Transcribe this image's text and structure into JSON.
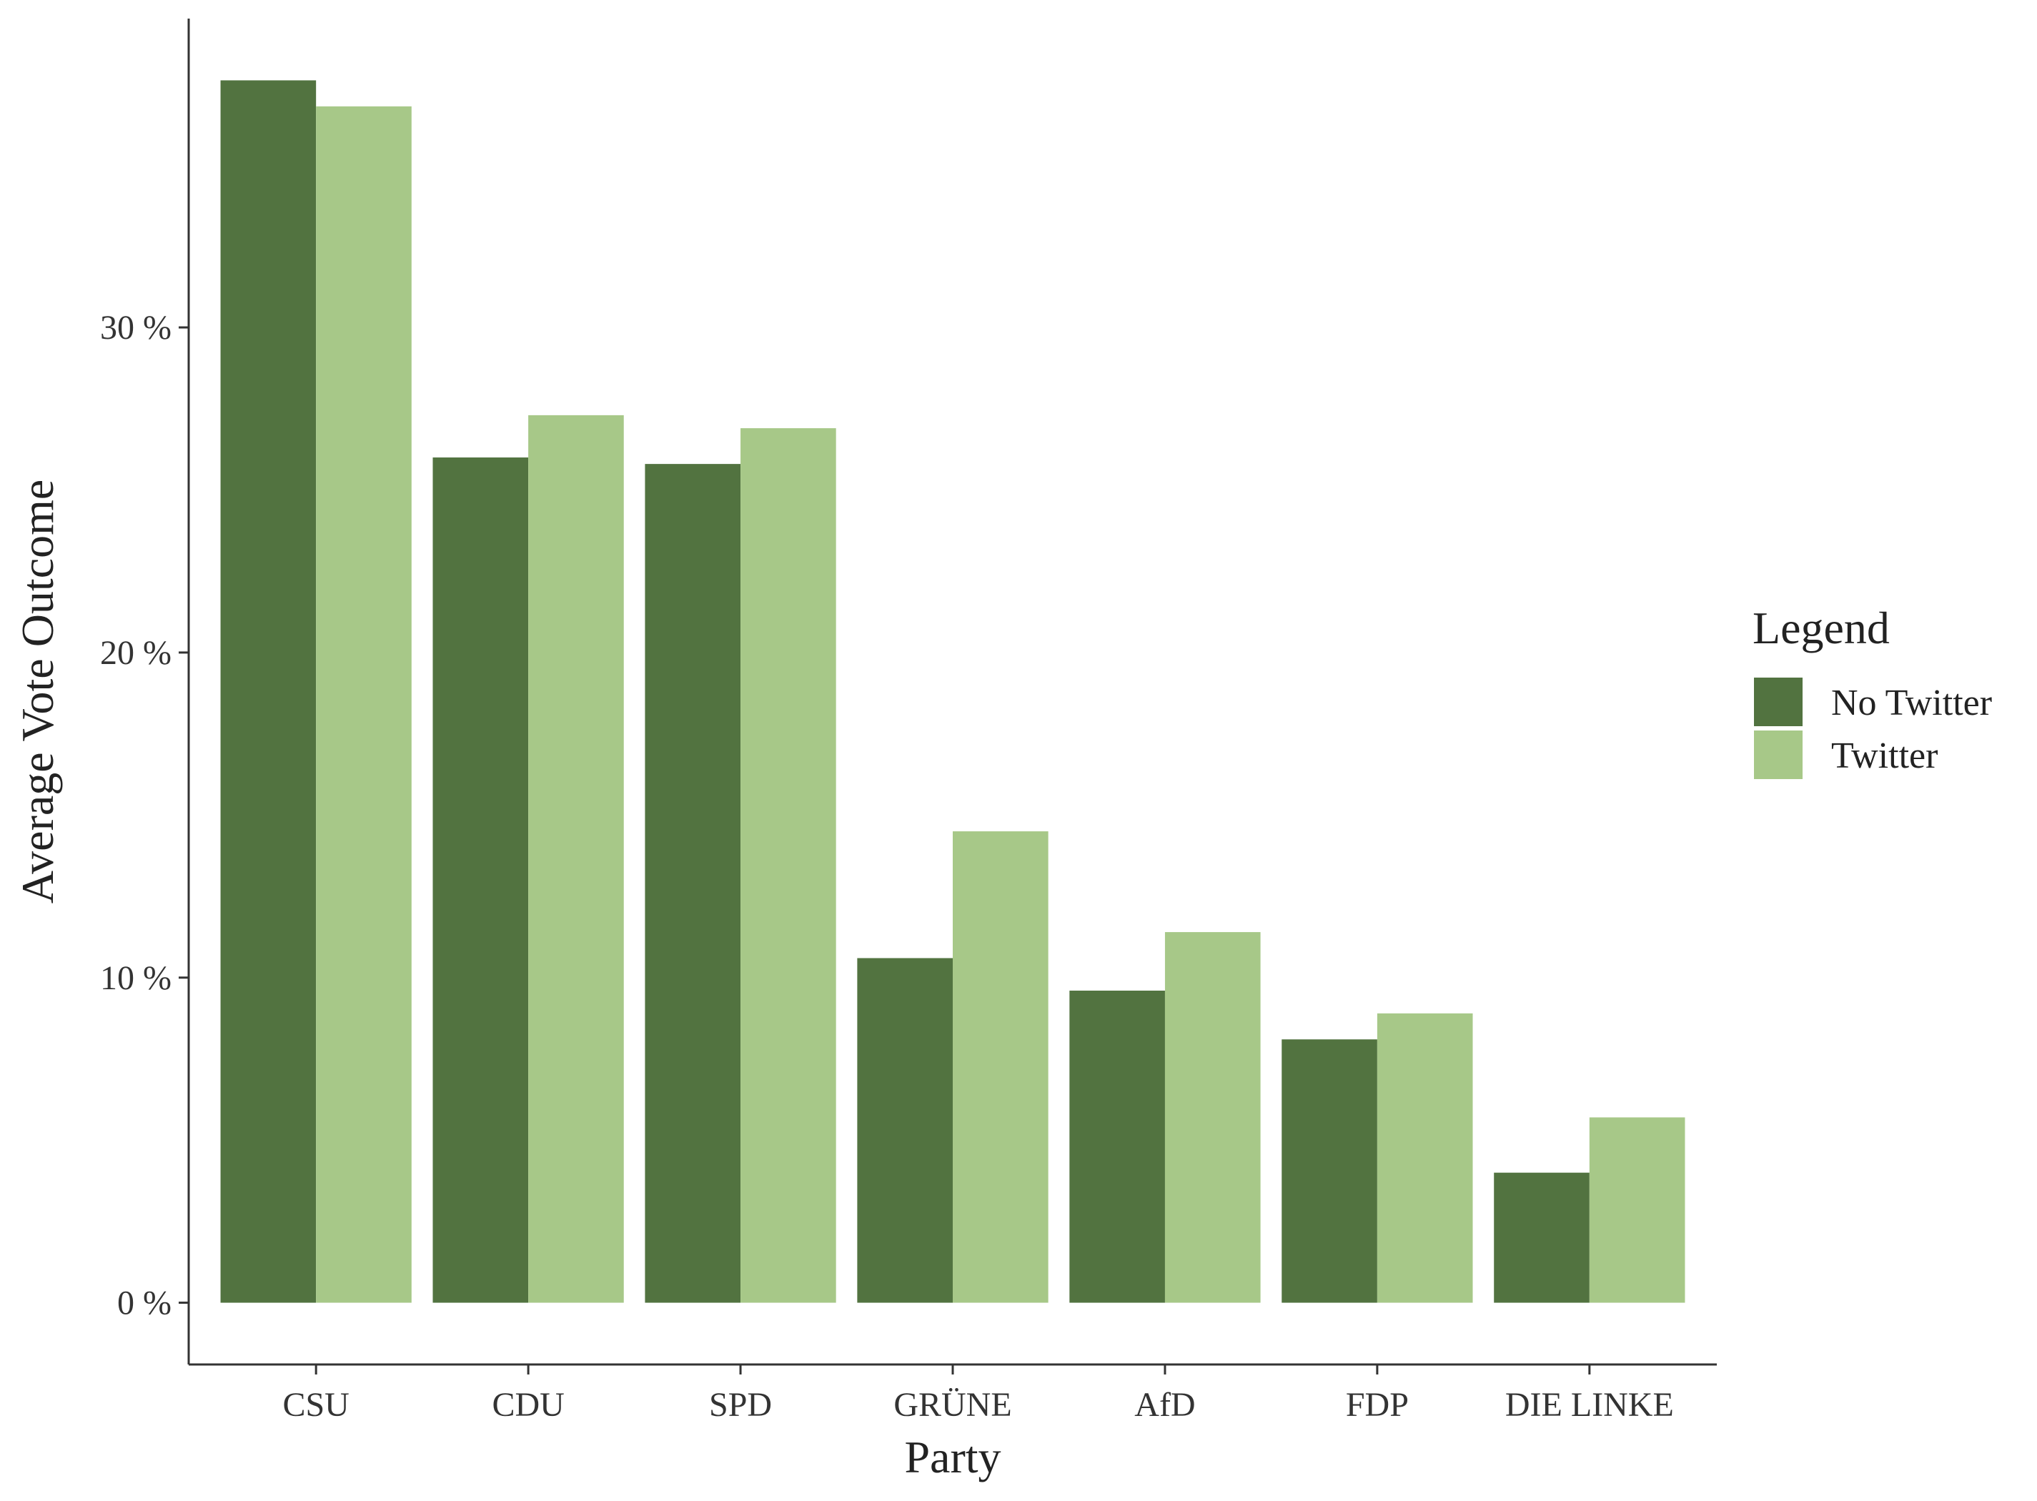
{
  "chart_data": {
    "type": "bar",
    "title": "",
    "xlabel": "Party",
    "ylabel": "Average Vote Outcome",
    "categories": [
      "CSU",
      "CDU",
      "SPD",
      "GRÜNE",
      "AfD",
      "FDP",
      "DIE LINKE"
    ],
    "series": [
      {
        "name": "No Twitter",
        "color": "#527340",
        "values": [
          37.6,
          26.0,
          25.8,
          10.6,
          9.6,
          8.1,
          4.0
        ]
      },
      {
        "name": "Twitter",
        "color": "#a7c888",
        "values": [
          36.8,
          27.3,
          26.9,
          14.5,
          11.4,
          8.9,
          5.7
        ]
      }
    ],
    "ylim": [
      -1.9,
      39.5
    ],
    "yticks": [
      0,
      10,
      20,
      30
    ],
    "ytick_labels": [
      "0 %",
      "10 %",
      "20 %",
      "30 %"
    ],
    "grid": false,
    "legend": {
      "title": "Legend",
      "position": "right"
    }
  }
}
